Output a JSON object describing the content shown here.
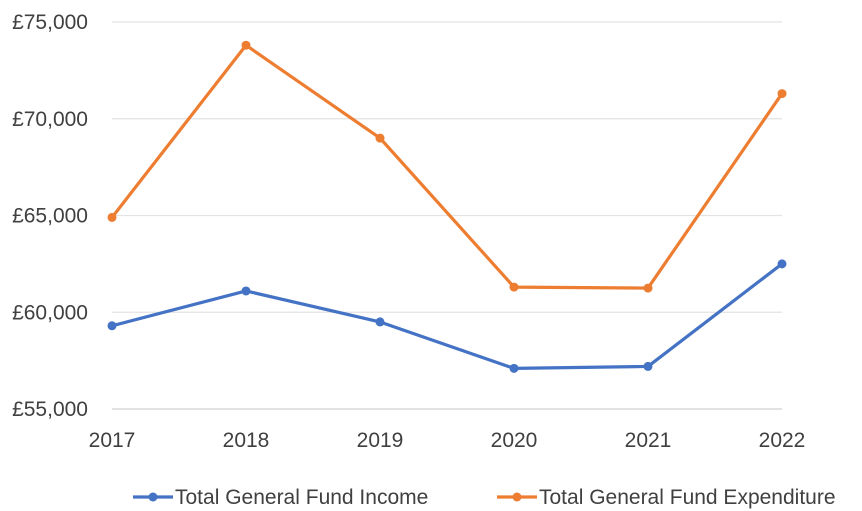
{
  "chart_data": {
    "type": "line",
    "title": "",
    "xlabel": "",
    "ylabel": "",
    "categories": [
      "2017",
      "2018",
      "2019",
      "2020",
      "2021",
      "2022"
    ],
    "ylim": [
      55000,
      75000
    ],
    "yticks": [
      55000,
      60000,
      65000,
      70000,
      75000
    ],
    "ytick_labels": [
      "£55,000",
      "£60,000",
      "£65,000",
      "£70,000",
      "£75,000"
    ],
    "grid": true,
    "legend_position": "bottom",
    "series": [
      {
        "name": "Total General Fund Income",
        "color": "#4472C4",
        "values": [
          59300,
          61100,
          59500,
          57100,
          57200,
          62500
        ]
      },
      {
        "name": "Total General Fund Expenditure",
        "color": "#ED7D31",
        "values": [
          64900,
          73800,
          69000,
          61300,
          61250,
          71300
        ]
      }
    ]
  }
}
